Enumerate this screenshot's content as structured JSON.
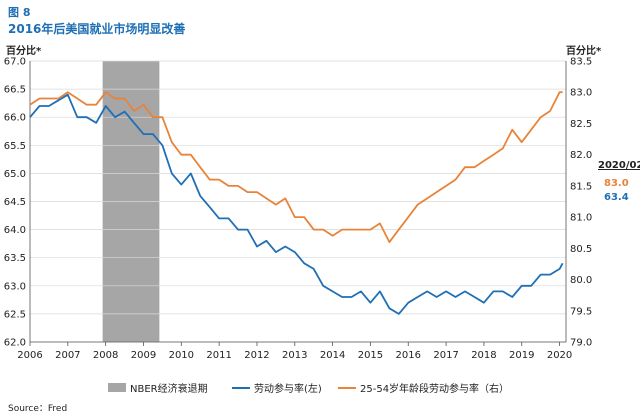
{
  "figure_label": "图 8",
  "title": "2016年后美国就业市场明显改善",
  "left_unit": "百分比*",
  "right_unit": "百分比*",
  "source": "Source：Fred",
  "colors": {
    "lfpr": "#1f6fb5",
    "prime": "#e8833a",
    "recession": "#a6a6a6",
    "title": "#1f6fb5"
  },
  "annotation": {
    "date": "2020/02",
    "prime_value": "83.0",
    "lfpr_value": "63.4"
  },
  "legend": {
    "recession": "NBER经济衰退期",
    "lfpr": "劳动参与率(左)",
    "prime": "25-54岁年龄段劳动参与率（右）"
  },
  "chart_data": {
    "type": "line",
    "title": "2016年后美国就业市场明显改善",
    "xlabel": "",
    "x_ticks": [
      "2006",
      "2007",
      "2008",
      "2009",
      "2010",
      "2011",
      "2012",
      "2013",
      "2014",
      "2015",
      "2016",
      "2017",
      "2018",
      "2019",
      "2020"
    ],
    "xlim": [
      2006.0,
      2020.17
    ],
    "left_axis": {
      "label": "百分比*",
      "ylim": [
        62.0,
        67.0
      ],
      "ticks": [
        "62.0",
        "62.5",
        "63.0",
        "63.5",
        "64.0",
        "64.5",
        "65.0",
        "65.5",
        "66.0",
        "66.5",
        "67.0"
      ]
    },
    "right_axis": {
      "label": "百分比*",
      "ylim": [
        79.0,
        83.5
      ],
      "ticks": [
        "79.0",
        "79.5",
        "80.0",
        "80.5",
        "81.0",
        "81.5",
        "82.0",
        "82.5",
        "83.0",
        "83.5"
      ]
    },
    "recession": {
      "start": 2007.92,
      "end": 2009.42,
      "label": "NBER经济衰退期"
    },
    "series": [
      {
        "name": "劳动参与率(左)",
        "axis": "left",
        "x": [
          2006.0,
          2006.25,
          2006.5,
          2006.75,
          2007.0,
          2007.25,
          2007.5,
          2007.75,
          2008.0,
          2008.25,
          2008.5,
          2008.75,
          2009.0,
          2009.25,
          2009.5,
          2009.75,
          2010.0,
          2010.25,
          2010.5,
          2010.75,
          2011.0,
          2011.25,
          2011.5,
          2011.75,
          2012.0,
          2012.25,
          2012.5,
          2012.75,
          2013.0,
          2013.25,
          2013.5,
          2013.75,
          2014.0,
          2014.25,
          2014.5,
          2014.75,
          2015.0,
          2015.25,
          2015.5,
          2015.75,
          2016.0,
          2016.25,
          2016.5,
          2016.75,
          2017.0,
          2017.25,
          2017.5,
          2017.75,
          2018.0,
          2018.25,
          2018.5,
          2018.75,
          2019.0,
          2019.25,
          2019.5,
          2019.75,
          2020.0,
          2020.08
        ],
        "values": [
          66.0,
          66.2,
          66.2,
          66.3,
          66.4,
          66.0,
          66.0,
          65.9,
          66.2,
          66.0,
          66.1,
          65.9,
          65.7,
          65.7,
          65.5,
          65.0,
          64.8,
          65.0,
          64.6,
          64.4,
          64.2,
          64.2,
          64.0,
          64.0,
          63.7,
          63.8,
          63.6,
          63.7,
          63.6,
          63.4,
          63.3,
          63.0,
          62.9,
          62.8,
          62.8,
          62.9,
          62.7,
          62.9,
          62.6,
          62.5,
          62.7,
          62.8,
          62.9,
          62.8,
          62.9,
          62.8,
          62.9,
          62.8,
          62.7,
          62.9,
          62.9,
          62.8,
          63.0,
          63.0,
          63.2,
          63.2,
          63.3,
          63.4
        ]
      },
      {
        "name": "25-54岁年龄段劳动参与率（右）",
        "axis": "right",
        "x": [
          2006.0,
          2006.25,
          2006.5,
          2006.75,
          2007.0,
          2007.25,
          2007.5,
          2007.75,
          2008.0,
          2008.25,
          2008.5,
          2008.75,
          2009.0,
          2009.25,
          2009.5,
          2009.75,
          2010.0,
          2010.25,
          2010.5,
          2010.75,
          2011.0,
          2011.25,
          2011.5,
          2011.75,
          2012.0,
          2012.25,
          2012.5,
          2012.75,
          2013.0,
          2013.25,
          2013.5,
          2013.75,
          2014.0,
          2014.25,
          2014.5,
          2014.75,
          2015.0,
          2015.25,
          2015.5,
          2015.75,
          2016.0,
          2016.25,
          2016.5,
          2016.75,
          2017.0,
          2017.25,
          2017.5,
          2017.75,
          2018.0,
          2018.25,
          2018.5,
          2018.75,
          2019.0,
          2019.25,
          2019.5,
          2019.75,
          2020.0,
          2020.08
        ],
        "values": [
          82.8,
          82.9,
          82.9,
          82.9,
          83.0,
          82.9,
          82.8,
          82.8,
          83.0,
          82.9,
          82.9,
          82.7,
          82.8,
          82.6,
          82.6,
          82.2,
          82.0,
          82.0,
          81.8,
          81.6,
          81.6,
          81.5,
          81.5,
          81.4,
          81.4,
          81.3,
          81.2,
          81.3,
          81.0,
          81.0,
          80.8,
          80.8,
          80.7,
          80.8,
          80.8,
          80.8,
          80.8,
          80.9,
          80.6,
          80.8,
          81.0,
          81.2,
          81.3,
          81.4,
          81.5,
          81.6,
          81.8,
          81.8,
          81.9,
          82.0,
          82.1,
          82.4,
          82.2,
          82.4,
          82.6,
          82.7,
          83.0,
          83.0
        ]
      }
    ]
  }
}
